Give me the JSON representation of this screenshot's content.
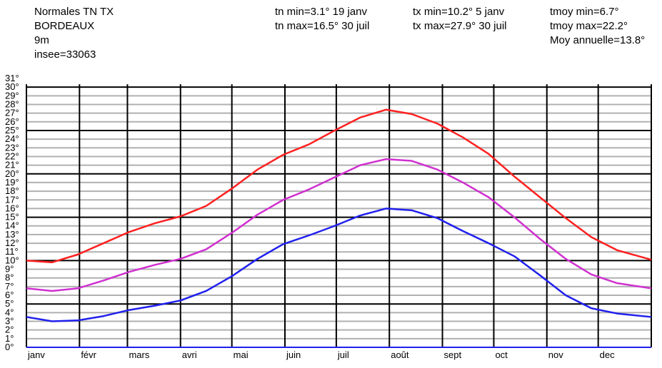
{
  "chart_data": {
    "type": "line",
    "title": "Normales TN TX",
    "station_lines": [
      "BORDEAUX",
      "9m",
      "insee=33063"
    ],
    "annotations": [
      [
        "tn min=3.1° 19 janv",
        "tn max=16.5° 30 juil"
      ],
      [
        "tx min=10.2° 5 janv",
        "tx max=27.9° 30 juil"
      ],
      [
        "tmoy min=6.7°",
        "tmoy max=22.2°",
        "Moy annuelle=13.8°"
      ]
    ],
    "x": [
      0,
      15,
      30,
      45,
      60,
      75,
      90,
      105,
      120,
      135,
      150,
      165,
      180,
      195,
      210,
      225,
      240,
      255,
      270,
      285,
      300,
      315,
      330,
      345,
      365
    ],
    "series": [
      {
        "color": "#ff2020",
        "values": [
          10.0,
          9.8,
          10.7,
          12.0,
          13.3,
          14.3,
          15.1,
          16.3,
          18.3,
          20.5,
          22.2,
          23.4,
          25.0,
          26.5,
          27.4,
          26.9,
          25.8,
          24.2,
          22.3,
          19.7,
          17.3,
          14.9,
          12.7,
          11.2,
          10.1
        ]
      },
      {
        "color": "#d030d0",
        "values": [
          6.8,
          6.5,
          6.8,
          7.7,
          8.7,
          9.5,
          10.2,
          11.3,
          13.2,
          15.3,
          17.0,
          18.2,
          19.6,
          21.0,
          21.7,
          21.5,
          20.5,
          19.0,
          17.3,
          15.0,
          12.5,
          10.2,
          8.4,
          7.4,
          6.8
        ]
      },
      {
        "color": "#2020ee",
        "values": [
          3.5,
          3.0,
          3.1,
          3.6,
          4.3,
          4.8,
          5.4,
          6.5,
          8.2,
          10.2,
          11.9,
          12.9,
          14.0,
          15.2,
          16.0,
          15.8,
          14.9,
          13.4,
          12.0,
          10.5,
          8.3,
          6.0,
          4.5,
          3.9,
          3.5
        ]
      }
    ],
    "xlim": [
      0,
      365
    ],
    "xticks": [
      {
        "value": 0,
        "label": "janv"
      },
      {
        "value": 31,
        "label": "févr"
      },
      {
        "value": 59,
        "label": "mars"
      },
      {
        "value": 90,
        "label": "avri"
      },
      {
        "value": 120,
        "label": "mai"
      },
      {
        "value": 151,
        "label": "juin"
      },
      {
        "value": 181,
        "label": "juil"
      },
      {
        "value": 212,
        "label": "août"
      },
      {
        "value": 243,
        "label": "sept"
      },
      {
        "value": 273,
        "label": "oct"
      },
      {
        "value": 304,
        "label": "nov"
      },
      {
        "value": 334,
        "label": "dec"
      }
    ],
    "ylim": [
      0,
      31
    ],
    "yticks": [
      {
        "value": 0,
        "label": "0°"
      },
      {
        "value": 1,
        "label": "1°"
      },
      {
        "value": 2,
        "label": "2°"
      },
      {
        "value": 3,
        "label": "3°"
      },
      {
        "value": 4,
        "label": "4°"
      },
      {
        "value": 5,
        "label": "5°"
      },
      {
        "value": 6,
        "label": "6°"
      },
      {
        "value": 7,
        "label": "7°"
      },
      {
        "value": 8,
        "label": "8°"
      },
      {
        "value": 9,
        "label": "9°"
      },
      {
        "value": 10,
        "label": "10°"
      },
      {
        "value": 11,
        "label": "11°"
      },
      {
        "value": 12,
        "label": "12°"
      },
      {
        "value": 13,
        "label": "13°"
      },
      {
        "value": 14,
        "label": "14°"
      },
      {
        "value": 15,
        "label": "15°"
      },
      {
        "value": 16,
        "label": "16°"
      },
      {
        "value": 17,
        "label": "17°"
      },
      {
        "value": 18,
        "label": "18°"
      },
      {
        "value": 19,
        "label": "19°"
      },
      {
        "value": 20,
        "label": "20°"
      },
      {
        "value": 21,
        "label": "21°"
      },
      {
        "value": 22,
        "label": "22°"
      },
      {
        "value": 23,
        "label": "23°"
      },
      {
        "value": 24,
        "label": "24°"
      },
      {
        "value": 25,
        "label": "25°"
      },
      {
        "value": 26,
        "label": "26°"
      },
      {
        "value": 27,
        "label": "27°"
      },
      {
        "value": 28,
        "label": "28°"
      },
      {
        "value": 29,
        "label": "29°"
      },
      {
        "value": 30,
        "label": "30°"
      },
      {
        "value": 31,
        "label": "31°"
      }
    ],
    "grid": true
  }
}
